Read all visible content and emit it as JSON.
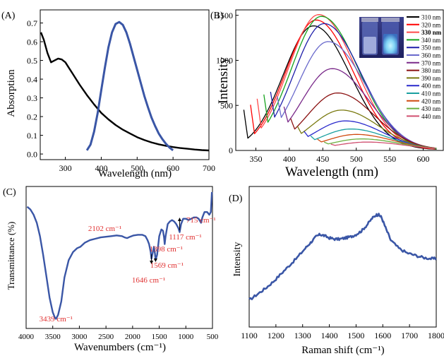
{
  "chart_data": [
    {
      "type": "line",
      "panel_label": "(A)",
      "xlabel": "Wavelength (nm)",
      "ylabel": "Absorption",
      "xlim": [
        230,
        700
      ],
      "ylim": [
        -0.03,
        0.77
      ],
      "xticks": [
        300,
        400,
        500,
        600,
        700
      ],
      "yticks": [
        0.0,
        0.1,
        0.2,
        0.3,
        0.4,
        0.5,
        0.6,
        0.7
      ],
      "series": [
        {
          "color": "#000000",
          "x": [
            232,
            240,
            250,
            260,
            270,
            280,
            290,
            300,
            310,
            320,
            340,
            360,
            380,
            400,
            420,
            440,
            460,
            480,
            500,
            520,
            540,
            560,
            580,
            600,
            620,
            640,
            660,
            680,
            700
          ],
          "y": [
            0.65,
            0.61,
            0.54,
            0.49,
            0.5,
            0.51,
            0.505,
            0.49,
            0.46,
            0.43,
            0.37,
            0.315,
            0.265,
            0.22,
            0.185,
            0.155,
            0.13,
            0.11,
            0.09,
            0.075,
            0.062,
            0.052,
            0.044,
            0.037,
            0.032,
            0.028,
            0.024,
            0.021,
            0.019
          ]
        },
        {
          "color": "#3a56a6",
          "x": [
            360,
            370,
            380,
            390,
            400,
            410,
            420,
            430,
            440,
            450,
            460,
            470,
            480,
            490,
            500,
            510,
            520,
            530,
            540,
            550,
            560,
            570,
            580,
            590,
            600
          ],
          "y": [
            0.02,
            0.05,
            0.12,
            0.22,
            0.34,
            0.46,
            0.57,
            0.65,
            0.695,
            0.705,
            0.69,
            0.65,
            0.59,
            0.52,
            0.45,
            0.38,
            0.31,
            0.25,
            0.195,
            0.15,
            0.11,
            0.08,
            0.055,
            0.035,
            0.02
          ]
        }
      ]
    },
    {
      "type": "line",
      "panel_label": "(B)",
      "xlabel": "Wavelength (nm)",
      "ylabel": "Intensity",
      "xlim": [
        320,
        630
      ],
      "ylim": [
        0,
        1560
      ],
      "xticks": [
        350,
        400,
        450,
        500,
        550,
        600
      ],
      "yticks": [
        0,
        500,
        1000,
        1500
      ],
      "legend_position": "right",
      "legend": [
        "310 nm",
        "320 nm",
        "330 nm",
        "340 nm",
        "350 nm",
        "360 nm",
        "370 nm",
        "380 nm",
        "390 nm",
        "400 nm",
        "410 nm",
        "420 nm",
        "430 nm",
        "440 nm"
      ],
      "legend_bold_index": 2,
      "series": [
        {
          "name": "310 nm",
          "color": "#000000",
          "excitation": 310,
          "peak_x": 436,
          "peak_y": 1375
        },
        {
          "name": "320 nm",
          "color": "#ff0000",
          "excitation": 320,
          "peak_x": 440,
          "peak_y": 1440
        },
        {
          "name": "330 nm",
          "color": "#ff4a4a",
          "excitation": 330,
          "peak_x": 444,
          "peak_y": 1500
        },
        {
          "name": "340 nm",
          "color": "#16a31f",
          "excitation": 340,
          "peak_x": 448,
          "peak_y": 1480
        },
        {
          "name": "350 nm",
          "color": "#1f1faa",
          "excitation": 350,
          "peak_x": 452,
          "peak_y": 1400
        },
        {
          "name": "360 nm",
          "color": "#6a6acc",
          "excitation": 360,
          "peak_x": 458,
          "peak_y": 1200
        },
        {
          "name": "370 nm",
          "color": "#7a2a8a",
          "excitation": 370,
          "peak_x": 464,
          "peak_y": 900
        },
        {
          "name": "380 nm",
          "color": "#8a1010",
          "excitation": 380,
          "peak_x": 472,
          "peak_y": 630
        },
        {
          "name": "390 nm",
          "color": "#7a7a10",
          "excitation": 390,
          "peak_x": 478,
          "peak_y": 440
        },
        {
          "name": "400 nm",
          "color": "#2a2acc",
          "excitation": 400,
          "peak_x": 484,
          "peak_y": 320
        },
        {
          "name": "410 nm",
          "color": "#1aa0a0",
          "excitation": 410,
          "peak_x": 492,
          "peak_y": 230
        },
        {
          "name": "420 nm",
          "color": "#d04a10",
          "excitation": 420,
          "peak_x": 500,
          "peak_y": 170
        },
        {
          "name": "430 nm",
          "color": "#6ab040",
          "excitation": 430,
          "peak_x": 508,
          "peak_y": 120
        },
        {
          "name": "440 nm",
          "color": "#d05070",
          "excitation": 440,
          "peak_x": 516,
          "peak_y": 85
        }
      ]
    },
    {
      "type": "line",
      "panel_label": "(C)",
      "xlabel": "Wavenumbers (cm⁻¹)",
      "ylabel": "Transmittance (%)",
      "xlim": [
        4000,
        500
      ],
      "ylim": [
        0,
        100
      ],
      "xticks": [
        4000,
        3500,
        3000,
        2500,
        2000,
        1500,
        1000,
        500
      ],
      "annotations": [
        {
          "label": "3439 cm⁻¹",
          "x": 3439
        },
        {
          "label": "2102 cm⁻¹",
          "x": 2102
        },
        {
          "label": "1646 cm⁻¹",
          "x": 1646
        },
        {
          "label": "1569 cm⁻¹",
          "x": 1569
        },
        {
          "label": "1398 cm⁻¹",
          "x": 1398
        },
        {
          "label": "1117 cm⁻¹",
          "x": 1117
        },
        {
          "label": "715 cm⁻¹",
          "x": 715
        }
      ],
      "series": [
        {
          "color": "#3a56a6",
          "x": [
            3980,
            3920,
            3860,
            3800,
            3740,
            3680,
            3620,
            3560,
            3500,
            3460,
            3439,
            3400,
            3340,
            3280,
            3200,
            3120,
            3040,
            2980,
            2900,
            2800,
            2700,
            2600,
            2500,
            2400,
            2300,
            2200,
            2150,
            2102,
            2050,
            1980,
            1900,
            1820,
            1760,
            1720,
            1690,
            1660,
            1646,
            1620,
            1600,
            1580,
            1569,
            1540,
            1500,
            1460,
            1430,
            1410,
            1398,
            1380,
            1340,
            1300,
            1260,
            1220,
            1180,
            1140,
            1117,
            1090,
            1050,
            1000,
            950,
            900,
            850,
            800,
            760,
            730,
            715,
            690,
            650,
            600,
            560,
            530,
            510
          ],
          "y": [
            88,
            86,
            82,
            76,
            66,
            52,
            36,
            20,
            9,
            5,
            4,
            7,
            17,
            35,
            48,
            54,
            57,
            58,
            61,
            63,
            64,
            65,
            65.5,
            66,
            66.5,
            66,
            65,
            64.5,
            65.5,
            66.5,
            67,
            67,
            66,
            63,
            60,
            54,
            49,
            54,
            58,
            53,
            48,
            52,
            66,
            71,
            70,
            65,
            60,
            66,
            75,
            77,
            78,
            77,
            75,
            72,
            69,
            75,
            79,
            79,
            78,
            79,
            80,
            80,
            79,
            77,
            76,
            80,
            84,
            84,
            82,
            84,
            99
          ]
        }
      ]
    },
    {
      "type": "line",
      "panel_label": "(D)",
      "xlabel": "Raman shift (cm⁻¹)",
      "ylabel": "Intensity",
      "xlim": [
        1100,
        1800
      ],
      "ylim": [
        0,
        100
      ],
      "xticks": [
        1100,
        1200,
        1300,
        1400,
        1500,
        1600,
        1700,
        1800
      ],
      "series": [
        {
          "color": "#3a56a6",
          "x": [
            1100,
            1130,
            1160,
            1190,
            1220,
            1250,
            1280,
            1310,
            1330,
            1350,
            1365,
            1380,
            1400,
            1420,
            1440,
            1460,
            1480,
            1500,
            1520,
            1540,
            1560,
            1575,
            1585,
            1595,
            1610,
            1630,
            1660,
            1690,
            1720,
            1750,
            1780,
            1800
          ],
          "y": [
            5,
            10,
            15,
            21,
            28,
            35,
            42,
            50,
            55,
            60,
            62,
            61,
            59,
            58,
            58,
            59,
            60,
            62,
            65,
            70,
            76,
            79,
            79,
            77,
            68,
            57,
            50,
            46,
            44,
            42,
            41,
            41
          ]
        }
      ]
    }
  ]
}
